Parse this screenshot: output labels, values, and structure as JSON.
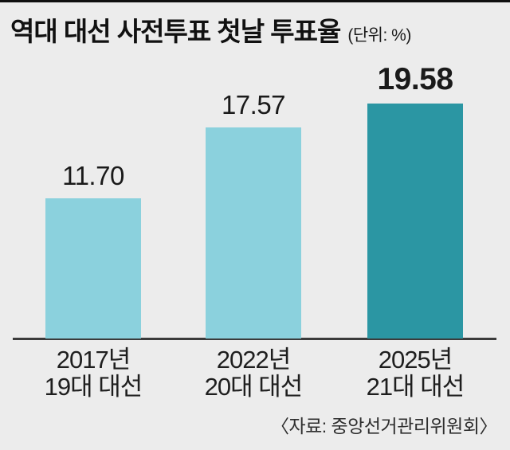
{
  "colors": {
    "background": "#ececec",
    "top_rule": "#101010",
    "axis_line": "#3b3b3b",
    "bar_light": "#8bd1dd",
    "bar_dark": "#2b96a3",
    "text": "#1a1a1a"
  },
  "chart_data": {
    "type": "bar",
    "title": "역대 대선 사전투표 첫날 투표율",
    "unit_label": "(단위: %)",
    "categories": [
      [
        "2017년",
        "19대 대선"
      ],
      [
        "2022년",
        "20대 대선"
      ],
      [
        "2025년",
        "21대 대선"
      ]
    ],
    "values": [
      11.7,
      17.57,
      19.58
    ],
    "value_labels": [
      "11.70",
      "17.57",
      "19.58"
    ],
    "bar_colors": [
      "#8bd1dd",
      "#8bd1dd",
      "#2b96a3"
    ],
    "highlight_index": 2,
    "ylim": [
      0,
      19.58
    ],
    "xlabel": "",
    "ylabel": "",
    "grid": false,
    "legend": "none",
    "source": "〈자료: 중앙선거관리위원회〉"
  }
}
